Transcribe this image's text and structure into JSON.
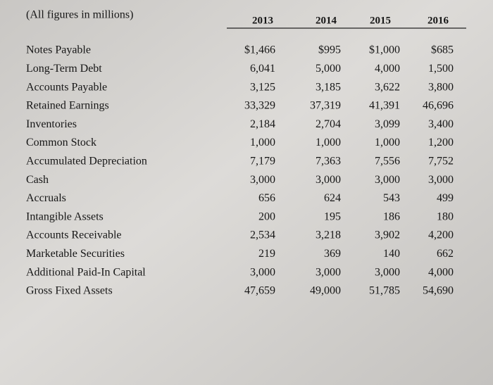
{
  "header": {
    "title": "(All figures in millions)",
    "years": [
      "2013",
      "2014",
      "2015",
      "2016"
    ]
  },
  "table": {
    "rows": [
      [
        "Notes Payable",
        "$1,466",
        "$995",
        "$1,000",
        "$685"
      ],
      [
        "Long-Term Debt",
        "6,041",
        "5,000",
        "4,000",
        "1,500"
      ],
      [
        "Accounts Payable",
        "3,125",
        "3,185",
        "3,622",
        "3,800"
      ],
      [
        "Retained Earnings",
        "33,329",
        "37,319",
        "41,391",
        "46,696"
      ],
      [
        "Inventories",
        "2,184",
        "2,704",
        "3,099",
        "3,400"
      ],
      [
        "Common Stock",
        "1,000",
        "1,000",
        "1,000",
        "1,200"
      ],
      [
        "Accumulated Depreciation",
        "7,179",
        "7,363",
        "7,556",
        "7,752"
      ],
      [
        "Cash",
        "3,000",
        "3,000",
        "3,000",
        "3,000"
      ],
      [
        "Accruals",
        "656",
        "624",
        "543",
        "499"
      ],
      [
        "Intangible Assets",
        "200",
        "195",
        "186",
        "180"
      ],
      [
        "Accounts Receivable",
        "2,534",
        "3,218",
        "3,902",
        "4,200"
      ],
      [
        "Marketable Securities",
        "219",
        "369",
        "140",
        "662"
      ],
      [
        "Additional Paid-In Capital",
        "3,000",
        "3,000",
        "3,000",
        "4,000"
      ],
      [
        "Gross Fixed Assets",
        "47,659",
        "49,000",
        "51,785",
        "54,690"
      ]
    ]
  }
}
